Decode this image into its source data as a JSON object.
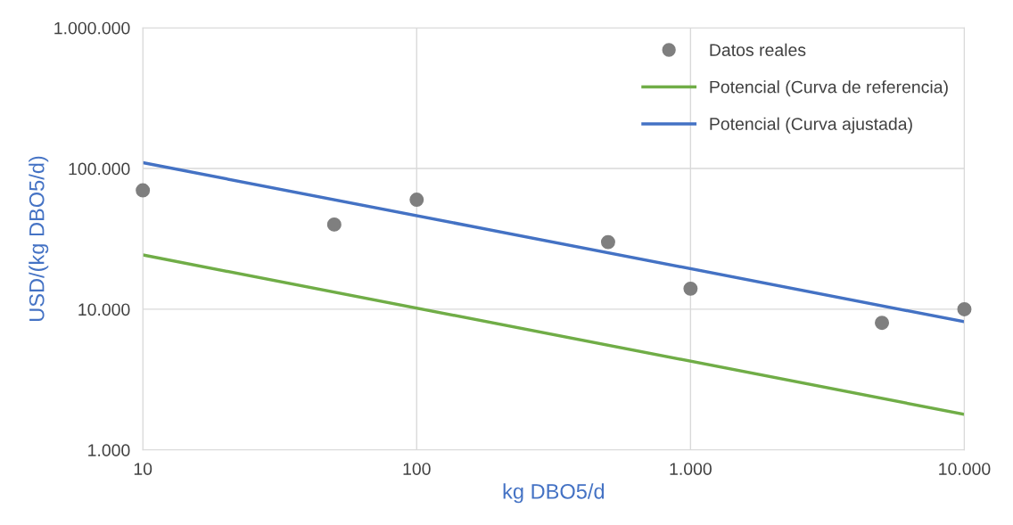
{
  "chart_data": {
    "type": "scatter",
    "xlabel": "kg DBO5/d",
    "ylabel": "USD/(kg DBO5/d)",
    "log": "xy",
    "grid": true,
    "legend": "top right",
    "xlim": [
      10,
      10000
    ],
    "xticks": [
      {
        "value": 10,
        "label": "10"
      },
      {
        "value": 100,
        "label": "100"
      },
      {
        "value": 1000,
        "label": "1.000"
      },
      {
        "value": 10000,
        "label": "10.000"
      }
    ],
    "ylim": [
      1000,
      1000000
    ],
    "yticks": [
      {
        "value": 1000,
        "label": "1.000"
      },
      {
        "value": 10000,
        "label": "10.000"
      },
      {
        "value": 100000,
        "label": "100.000"
      },
      {
        "value": 1000000,
        "label": "1.000.000"
      }
    ],
    "series": [
      {
        "name": "Datos reales",
        "marker": "circle",
        "color": "#7f7f7f",
        "x": [
          10,
          50,
          100,
          500,
          1000,
          5000,
          10000
        ],
        "values": [
          70000,
          40000,
          60000,
          30000,
          14000,
          8000,
          10000
        ]
      },
      {
        "name": "Potencial (Curva de referencia)",
        "type": "line",
        "color": "#70ad47",
        "x": [
          10,
          10000
        ],
        "values": [
          24300,
          1790
        ]
      },
      {
        "name": "Potencial (Curva ajustada)",
        "type": "line",
        "color": "#4472c4",
        "x": [
          10,
          10000
        ],
        "values": [
          110000,
          8150
        ]
      }
    ]
  }
}
